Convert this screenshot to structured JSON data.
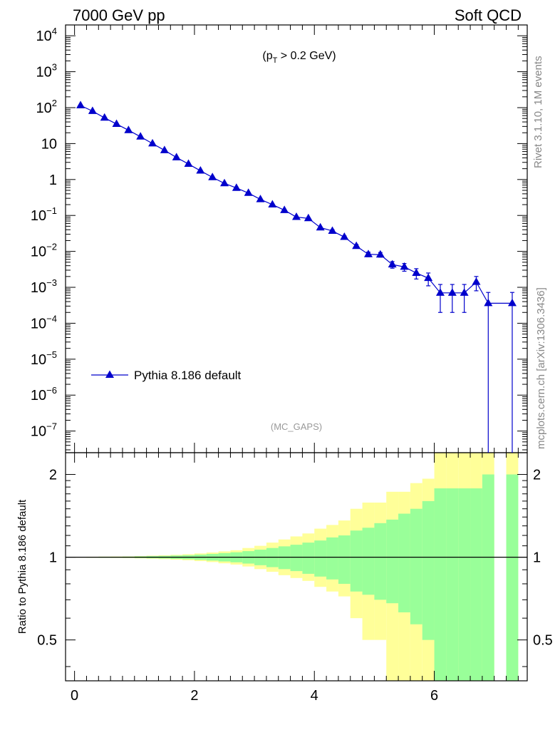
{
  "header": {
    "energy_label": "7000 GeV pp",
    "process_label": "Soft QCD"
  },
  "side_labels": {
    "rivet": "Rivet 3.1.10,  1M events",
    "mcplots": "mcplots.cern.ch [arXiv:1306.3436]"
  },
  "cut_label": {
    "prefix": "(p",
    "sub": "T",
    "suffix": " > 0.2 GeV)"
  },
  "analysis_label": "(MC_GAPS)",
  "colors": {
    "series": "#0000cc",
    "band_outer": "#ffff99",
    "band_inner": "#99ff99",
    "axis": "#000000",
    "side_text": "#888888",
    "analysis_text": "#999999"
  },
  "chart_data": [
    {
      "type": "line",
      "panel": "main",
      "yscale": "log",
      "xlim": [
        -0.15,
        7.55
      ],
      "ylim": [
        2.5e-08,
        20000.0
      ],
      "ytick_labels": [
        {
          "base": "10",
          "exp": "4",
          "value": 10000.0
        },
        {
          "base": "10",
          "exp": "3",
          "value": 1000.0
        },
        {
          "base": "10",
          "exp": "2",
          "value": 100.0
        },
        {
          "base": "10",
          "exp": "",
          "value": 10
        },
        {
          "base": "1",
          "exp": "",
          "value": 1
        },
        {
          "base": "10",
          "exp": "−1",
          "value": 0.1
        },
        {
          "base": "10",
          "exp": "−2",
          "value": 0.01
        },
        {
          "base": "10",
          "exp": "−3",
          "value": 0.001
        },
        {
          "base": "10",
          "exp": "−4",
          "value": 0.0001
        },
        {
          "base": "10",
          "exp": "−5",
          "value": 1e-05
        },
        {
          "base": "10",
          "exp": "−6",
          "value": 1e-06
        },
        {
          "base": "10",
          "exp": "−7",
          "value": 1e-07
        }
      ],
      "legend": {
        "entry": "Pythia 8.186 default",
        "position": "lower-left"
      },
      "series": [
        {
          "name": "Pythia 8.186 default",
          "marker": "triangle-up",
          "x": [
            0.1,
            0.3,
            0.5,
            0.7,
            0.9,
            1.1,
            1.3,
            1.5,
            1.7,
            1.9,
            2.1,
            2.3,
            2.5,
            2.7,
            2.9,
            3.1,
            3.3,
            3.5,
            3.7,
            3.9,
            4.1,
            4.3,
            4.5,
            4.7,
            4.9,
            5.1,
            5.3,
            5.5,
            5.7,
            5.9,
            6.1,
            6.3,
            6.5,
            6.7,
            6.9,
            7.3
          ],
          "y": [
            115,
            80,
            52,
            35,
            23.5,
            15.5,
            10,
            6.5,
            4.1,
            2.7,
            1.75,
            1.15,
            0.78,
            0.58,
            0.42,
            0.28,
            0.2,
            0.14,
            0.09,
            0.083,
            0.046,
            0.037,
            0.025,
            0.014,
            0.0083,
            0.0081,
            0.0043,
            0.0037,
            0.0025,
            0.0018,
            0.0007,
            0.0007,
            0.0007,
            0.0014,
            0.00036,
            0.00036
          ],
          "y_err_low": [
            2,
            1,
            0.8,
            0.5,
            0.3,
            0.2,
            0.15,
            0.1,
            0.06,
            0.05,
            0.03,
            0.02,
            0.015,
            0.012,
            0.01,
            0.008,
            0.006,
            0.005,
            0.004,
            0.004,
            0.003,
            0.003,
            0.002,
            0.0015,
            0.0012,
            0.0012,
            0.0009,
            0.0009,
            0.0008,
            0.0007,
            0.0005,
            0.0005,
            0.0005,
            0.0006,
            0.00036,
            0.00036
          ],
          "y_err_high": [
            2,
            1,
            0.8,
            0.5,
            0.3,
            0.2,
            0.15,
            0.1,
            0.06,
            0.05,
            0.03,
            0.02,
            0.015,
            0.012,
            0.01,
            0.008,
            0.006,
            0.005,
            0.004,
            0.004,
            0.003,
            0.003,
            0.002,
            0.0015,
            0.0012,
            0.0012,
            0.0009,
            0.0009,
            0.0008,
            0.0007,
            0.0005,
            0.0005,
            0.0005,
            0.0006,
            0.00036,
            0.00036
          ],
          "connect_x": [
            6.9,
            7.3
          ],
          "connect_y": [
            0.00036,
            0.00036
          ]
        }
      ]
    },
    {
      "type": "area",
      "panel": "ratio",
      "yscale": "log",
      "ylabel": "Ratio to Pythia 8.186 default",
      "xlim": [
        -0.15,
        7.55
      ],
      "ylim": [
        0.355,
        2.4
      ],
      "x_ticks": [
        0,
        2,
        4,
        6
      ],
      "x_tick_labels": [
        "0",
        "2",
        "4",
        "6"
      ],
      "y_ticks": [
        0.5,
        1,
        2
      ],
      "y_tick_labels": [
        "0.5",
        "1",
        "2"
      ],
      "bins_low_edge": [
        0.0,
        0.2,
        0.4,
        0.6,
        0.8,
        1.0,
        1.2,
        1.4,
        1.6,
        1.8,
        2.0,
        2.2,
        2.4,
        2.6,
        2.8,
        3.0,
        3.2,
        3.4,
        3.6,
        3.8,
        4.0,
        4.2,
        4.4,
        4.6,
        4.8,
        5.0,
        5.2,
        5.4,
        5.6,
        5.8,
        6.0,
        6.2,
        6.4,
        6.6,
        6.8,
        7.2
      ],
      "bins_high_edge": [
        0.2,
        0.4,
        0.6,
        0.8,
        1.0,
        1.2,
        1.4,
        1.6,
        1.8,
        2.0,
        2.2,
        2.4,
        2.6,
        2.8,
        3.0,
        3.2,
        3.4,
        3.6,
        3.8,
        4.0,
        4.2,
        4.4,
        4.6,
        4.8,
        5.0,
        5.2,
        5.4,
        5.6,
        5.8,
        6.0,
        6.2,
        6.4,
        6.6,
        6.8,
        7.0,
        7.4
      ],
      "outer_band_low": [
        0.997,
        0.996,
        0.995,
        0.994,
        0.993,
        0.99,
        0.987,
        0.984,
        0.98,
        0.975,
        0.968,
        0.96,
        0.95,
        0.94,
        0.925,
        0.905,
        0.885,
        0.86,
        0.84,
        0.82,
        0.78,
        0.75,
        0.72,
        0.6,
        0.5,
        0.5,
        0.35,
        0.35,
        0.35,
        0.35,
        0.35,
        0.35,
        0.35,
        0.35,
        0.35,
        0.35
      ],
      "outer_band_high": [
        1.003,
        1.004,
        1.005,
        1.006,
        1.007,
        1.01,
        1.013,
        1.016,
        1.02,
        1.025,
        1.032,
        1.04,
        1.05,
        1.06,
        1.08,
        1.1,
        1.13,
        1.16,
        1.19,
        1.22,
        1.27,
        1.31,
        1.36,
        1.5,
        1.58,
        1.58,
        1.73,
        1.73,
        1.86,
        1.93,
        2.4,
        2.4,
        2.4,
        2.4,
        2.4,
        2.4
      ],
      "inner_band_low": [
        0.998,
        0.997,
        0.996,
        0.996,
        0.995,
        0.993,
        0.991,
        0.989,
        0.986,
        0.983,
        0.978,
        0.972,
        0.965,
        0.958,
        0.948,
        0.935,
        0.92,
        0.905,
        0.89,
        0.87,
        0.85,
        0.83,
        0.8,
        0.75,
        0.73,
        0.7,
        0.68,
        0.63,
        0.57,
        0.5,
        0.35,
        0.35,
        0.35,
        0.35,
        0.35,
        0.35
      ],
      "inner_band_high": [
        1.002,
        1.003,
        1.004,
        1.004,
        1.005,
        1.007,
        1.009,
        1.011,
        1.014,
        1.017,
        1.022,
        1.028,
        1.035,
        1.042,
        1.052,
        1.065,
        1.08,
        1.095,
        1.11,
        1.13,
        1.15,
        1.18,
        1.2,
        1.25,
        1.28,
        1.33,
        1.37,
        1.44,
        1.5,
        1.6,
        1.78,
        1.78,
        1.78,
        1.78,
        2.0,
        2.0
      ],
      "reference_line": 1
    }
  ]
}
